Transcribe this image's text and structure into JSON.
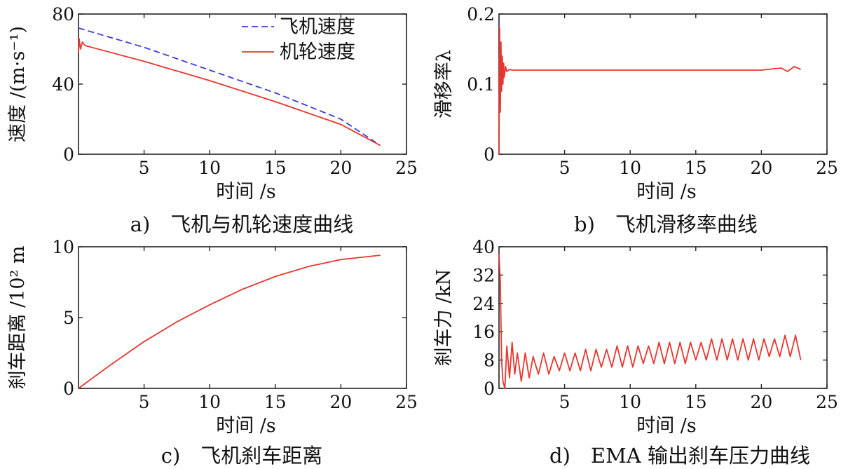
{
  "chart_data": [
    {
      "id": "a",
      "type": "line",
      "caption": "a)　飞机与机轮速度曲线",
      "xlabel": "时间 /s",
      "ylabel": "速度 /(m·s⁻¹)",
      "xlim": [
        0,
        25
      ],
      "ylim": [
        0,
        80
      ],
      "xticks": [
        5,
        10,
        15,
        20,
        25
      ],
      "yticks": [
        0,
        40,
        80
      ],
      "legend_position": "top-right",
      "series": [
        {
          "name": "飞机速度",
          "color": "#3a3adf",
          "dash": "dashed",
          "x": [
            0,
            5,
            10,
            15,
            20,
            23
          ],
          "y": [
            72,
            61,
            48,
            35,
            20,
            5
          ]
        },
        {
          "name": "机轮速度",
          "color": "#e8362e",
          "dash": "solid",
          "x": [
            0,
            0.05,
            0.15,
            0.3,
            0.5,
            5,
            10,
            15,
            20,
            23
          ],
          "y": [
            58,
            66,
            60,
            64,
            62,
            53,
            42,
            30,
            17,
            5
          ]
        }
      ]
    },
    {
      "id": "b",
      "type": "line",
      "caption": "b)　飞机滑移率曲线",
      "xlabel": "时间 /s",
      "ylabel": "滑移率λ",
      "xlim": [
        0,
        25
      ],
      "ylim": [
        0,
        0.2
      ],
      "xticks": [
        5,
        10,
        15,
        20,
        25
      ],
      "yticks": [
        0,
        0.1,
        0.2
      ],
      "ytick_labels": [
        "0",
        "0.1",
        "0.2"
      ],
      "series": [
        {
          "color": "#e8362e",
          "x": [
            0,
            0.05,
            0.1,
            0.15,
            0.2,
            0.25,
            0.3,
            0.35,
            0.4,
            0.5,
            0.6,
            0.8,
            1,
            5,
            10,
            15,
            20,
            21.5,
            22,
            22.5,
            23
          ],
          "y": [
            0,
            0.18,
            0.06,
            0.16,
            0.09,
            0.14,
            0.1,
            0.13,
            0.11,
            0.125,
            0.118,
            0.121,
            0.12,
            0.12,
            0.12,
            0.12,
            0.12,
            0.123,
            0.118,
            0.125,
            0.121
          ]
        }
      ]
    },
    {
      "id": "c",
      "type": "line",
      "caption": "c)　飞机刹车距离",
      "xlabel": "时间 /s",
      "ylabel": "刹车距离 /10² m",
      "xlim": [
        0,
        25
      ],
      "ylim": [
        0,
        10
      ],
      "xticks": [
        5,
        10,
        15,
        20,
        25
      ],
      "yticks": [
        0,
        5,
        10
      ],
      "series": [
        {
          "color": "#e8362e",
          "x": [
            0,
            2.5,
            5,
            7.5,
            10,
            12.5,
            15,
            17.5,
            20,
            23
          ],
          "y": [
            0,
            1.7,
            3.3,
            4.7,
            5.9,
            7.0,
            7.9,
            8.6,
            9.1,
            9.4
          ]
        }
      ]
    },
    {
      "id": "d",
      "type": "line",
      "caption": "d)　EMA 输出刹车压力曲线",
      "xlabel": "时间 /s",
      "ylabel": "刹车力 /kN",
      "xlim": [
        0,
        25
      ],
      "ylim": [
        0,
        40
      ],
      "xticks": [
        5,
        10,
        15,
        20,
        25
      ],
      "yticks": [
        0,
        8,
        16,
        24,
        32,
        40
      ],
      "series": [
        {
          "color": "#e8362e",
          "x": [
            0,
            0.1,
            0.2,
            0.3,
            0.45,
            0.6,
            0.8,
            1.0,
            1.2,
            1.4,
            1.7,
            2.0,
            2.3,
            2.6,
            3.0,
            3.4,
            3.8,
            4.2,
            4.6,
            5.0,
            5.4,
            5.8,
            6.2,
            6.6,
            7.0,
            7.4,
            7.8,
            8.2,
            8.6,
            9.0,
            9.4,
            9.8,
            10.2,
            10.6,
            11.0,
            11.4,
            11.8,
            12.2,
            12.6,
            13.0,
            13.4,
            13.8,
            14.2,
            14.6,
            15.0,
            15.4,
            15.8,
            16.2,
            16.6,
            17.0,
            17.4,
            17.8,
            18.2,
            18.6,
            19.0,
            19.4,
            19.8,
            20.2,
            20.6,
            21.0,
            21.4,
            21.8,
            22.2,
            22.6,
            23.0
          ],
          "y": [
            38,
            30,
            8,
            2,
            0,
            12,
            3,
            13,
            4,
            10,
            2,
            10,
            3,
            9,
            4,
            10,
            4,
            9,
            5,
            10,
            5,
            10,
            5,
            11,
            5,
            11,
            6,
            11,
            6,
            12,
            6,
            12,
            6,
            12,
            7,
            12,
            7,
            13,
            7,
            13,
            7,
            13,
            7,
            13,
            8,
            13,
            8,
            14,
            8,
            14,
            8,
            14,
            8,
            14,
            8,
            14,
            8,
            14,
            9,
            14,
            9,
            15,
            9,
            15,
            8
          ]
        }
      ]
    }
  ]
}
